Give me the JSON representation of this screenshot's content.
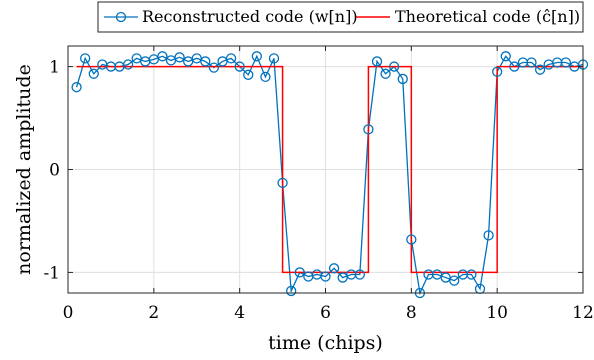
{
  "chart_data": {
    "type": "line",
    "xlabel": "time (chips)",
    "ylabel": "normalized amplitude",
    "xlim": [
      0,
      12
    ],
    "ylim": [
      -1.2,
      1.2
    ],
    "x_ticks": [
      0,
      2,
      4,
      6,
      8,
      10,
      12
    ],
    "y_ticks": [
      -1,
      0,
      1
    ],
    "x_tick_labels": [
      "0",
      "2",
      "4",
      "6",
      "8",
      "10",
      "12"
    ],
    "y_tick_labels": [
      "-1",
      "0",
      "1"
    ],
    "grid": true,
    "legend_position": "top, outside plot",
    "series": [
      {
        "name": "Reconstructed code (w[n])",
        "color": "#0072BD",
        "marker": "circle",
        "x": [
          0.2,
          0.4,
          0.6,
          0.8,
          1.0,
          1.2,
          1.4,
          1.6,
          1.8,
          2.0,
          2.2,
          2.4,
          2.6,
          2.8,
          3.0,
          3.2,
          3.4,
          3.6,
          3.8,
          4.0,
          4.2,
          4.4,
          4.6,
          4.8,
          5.0,
          5.2,
          5.4,
          5.6,
          5.8,
          6.0,
          6.2,
          6.4,
          6.6,
          6.8,
          7.0,
          7.2,
          7.4,
          7.6,
          7.8,
          8.0,
          8.2,
          8.4,
          8.6,
          8.8,
          9.0,
          9.2,
          9.4,
          9.6,
          9.8,
          10.0,
          10.2,
          10.4,
          10.6,
          10.8,
          11.0,
          11.2,
          11.4,
          11.6,
          11.8,
          12.0
        ],
        "y": [
          0.8,
          1.08,
          0.93,
          1.02,
          1.0,
          1.0,
          1.02,
          1.08,
          1.05,
          1.07,
          1.1,
          1.06,
          1.09,
          1.05,
          1.08,
          1.05,
          0.99,
          1.05,
          1.08,
          1.0,
          0.92,
          1.1,
          0.9,
          1.08,
          -0.13,
          -1.18,
          -1.0,
          -1.04,
          -1.02,
          -1.04,
          -0.96,
          -1.05,
          -1.02,
          -1.02,
          0.39,
          1.05,
          0.93,
          1.0,
          0.88,
          -0.68,
          -1.2,
          -1.02,
          -1.02,
          -1.05,
          -1.08,
          -1.02,
          -1.02,
          -1.16,
          -0.64,
          0.95,
          1.1,
          1.0,
          1.04,
          1.04,
          0.97,
          1.02,
          1.04,
          1.04,
          1.0,
          1.02
        ]
      },
      {
        "name": "Theoretical code (ĉ[n])",
        "color": "#FF0000",
        "marker": "none",
        "x": [
          0.2,
          5.0,
          5.0,
          7.0,
          7.0,
          8.0,
          8.0,
          10.0,
          10.0,
          12.0
        ],
        "y": [
          1,
          1,
          -1,
          -1,
          1,
          1,
          -1,
          -1,
          1,
          1
        ]
      }
    ]
  }
}
